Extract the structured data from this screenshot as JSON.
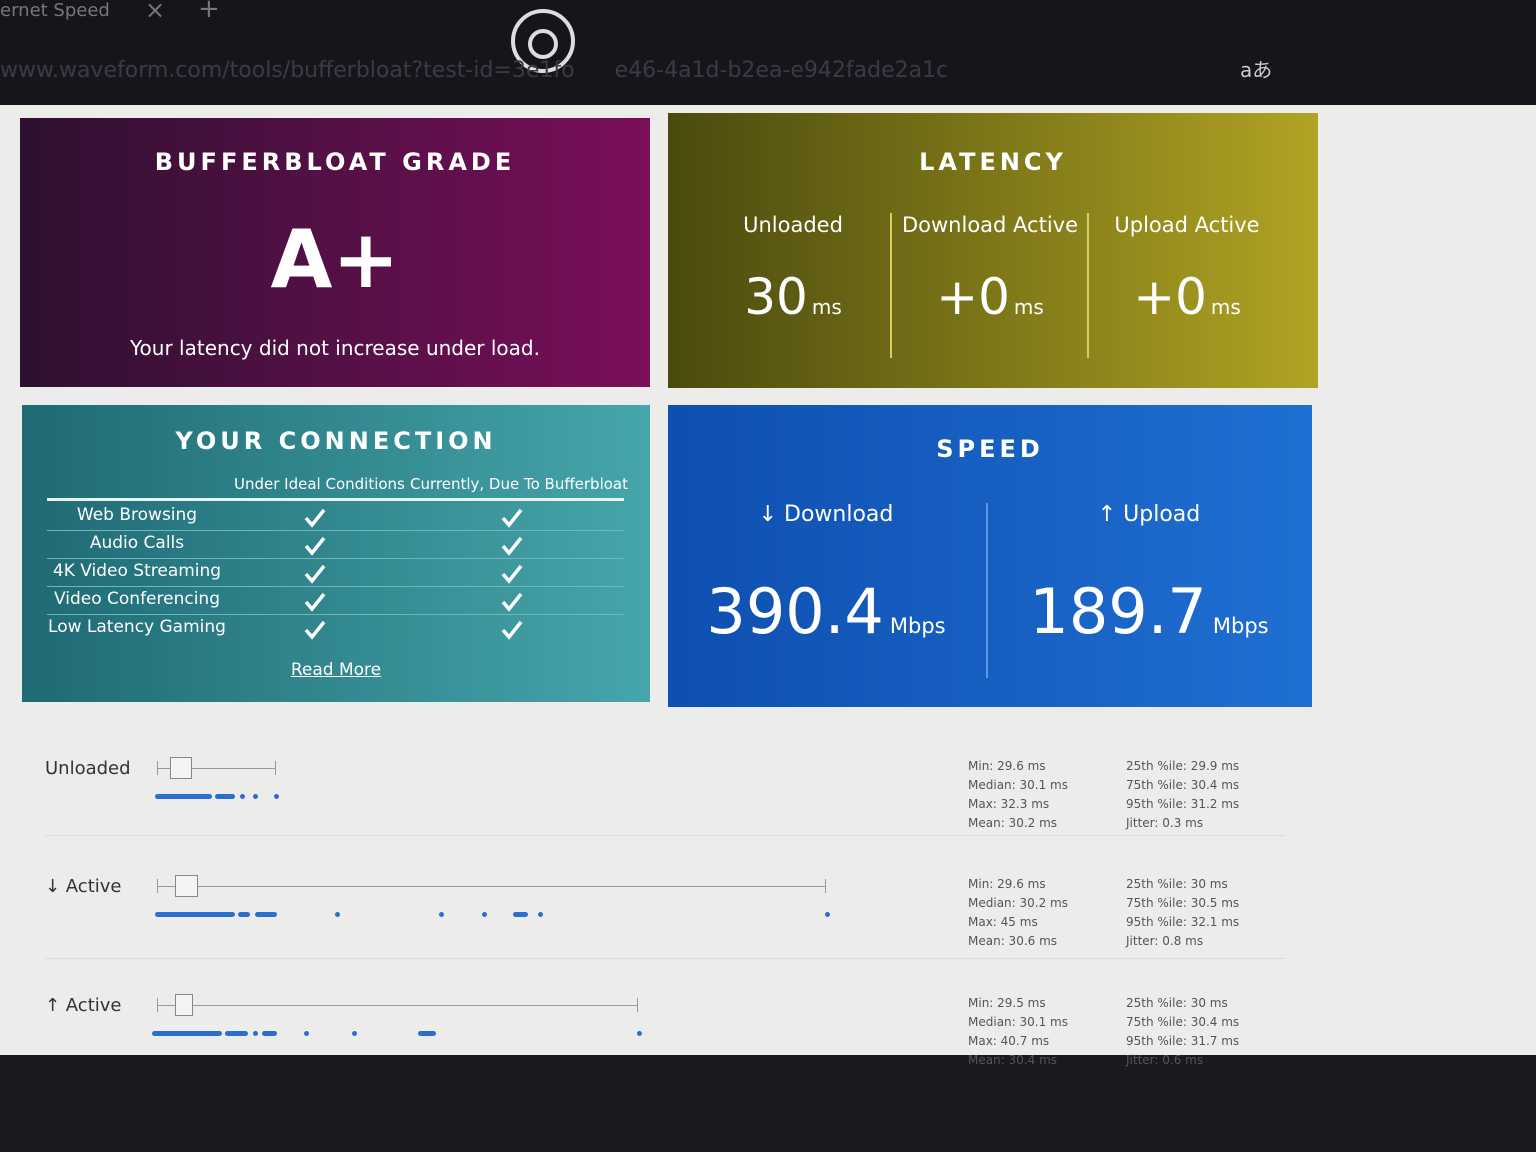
{
  "browser": {
    "tab_title": "ernet Speed",
    "url": "www.waveform.com/tools/bufferbloat?test-id=3e1fo",
    "url_tail": "e46-4a1d-b2ea-e942fade2a1c",
    "translate_icon": "aあ"
  },
  "grade": {
    "title": "BUFFERBLOAT GRADE",
    "grade": "A+",
    "message": "Your latency did not increase under load."
  },
  "latency": {
    "title": "LATENCY",
    "items": [
      {
        "label": "Unloaded",
        "value": "30",
        "unit": "ms"
      },
      {
        "label": "Download Active",
        "value": "+0",
        "unit": "ms"
      },
      {
        "label": "Upload Active",
        "value": "+0",
        "unit": "ms"
      }
    ]
  },
  "connection": {
    "title": "YOUR CONNECTION",
    "columns": [
      "Under Ideal Conditions",
      "Currently, Due To Bufferbloat"
    ],
    "rows": [
      "Web Browsing",
      "Audio Calls",
      "4K Video Streaming",
      "Video Conferencing",
      "Low Latency Gaming"
    ],
    "link": "Read More"
  },
  "speed": {
    "title": "SPEED",
    "items": [
      {
        "label": "↓ Download",
        "value": "390.4",
        "unit": "Mbps"
      },
      {
        "label": "↑ Upload",
        "value": "189.7",
        "unit": "Mbps"
      }
    ]
  },
  "latency_details": [
    {
      "label": "Unloaded",
      "stats": [
        "Min: 29.6 ms",
        "Median: 30.1 ms",
        "Max: 32.3 ms",
        "Mean: 30.2 ms"
      ],
      "percentiles": [
        "25th %ile: 29.9 ms",
        "75th %ile: 30.4 ms",
        "95th %ile: 31.2 ms",
        "Jitter: 0.3 ms"
      ]
    },
    {
      "label": "↓ Active",
      "stats": [
        "Min: 29.6 ms",
        "Median: 30.2 ms",
        "Max: 45 ms",
        "Mean: 30.6 ms"
      ],
      "percentiles": [
        "25th %ile: 30 ms",
        "75th %ile: 30.5 ms",
        "95th %ile: 32.1 ms",
        "Jitter: 0.8 ms"
      ]
    },
    {
      "label": "↑ Active",
      "stats": [
        "Min: 29.5 ms",
        "Median: 30.1 ms",
        "Max: 40.7 ms",
        "Mean: 30.4 ms"
      ],
      "percentiles": [
        "25th %ile: 30 ms",
        "75th %ile: 30.4 ms",
        "95th %ile: 31.7 ms",
        "Jitter: 0.6 ms"
      ]
    }
  ]
}
